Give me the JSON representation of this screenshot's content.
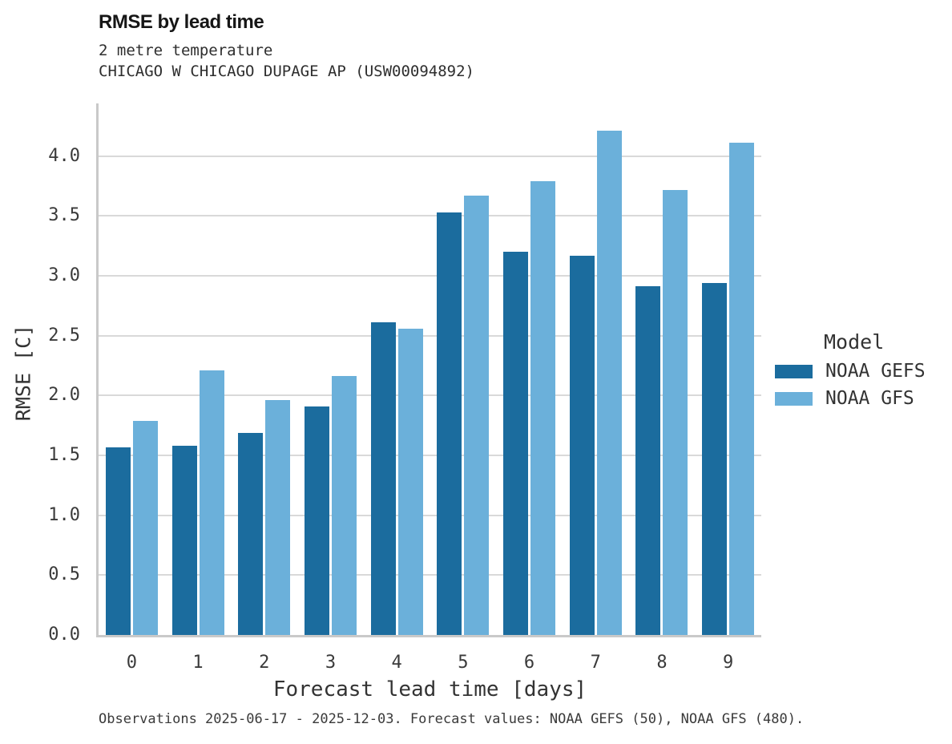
{
  "header": {
    "title": "RMSE by lead time",
    "subtitle_line1": "2 metre temperature",
    "subtitle_line2": "CHICAGO W CHICAGO DUPAGE AP (USW00094892)"
  },
  "legend": {
    "title": "Model"
  },
  "footer": {
    "text": "Observations 2025-06-17 - 2025-12-03. Forecast values: NOAA GEFS (50), NOAA GFS (480)."
  },
  "chart_data": {
    "type": "bar",
    "title": "RMSE by lead time",
    "subtitle": [
      "2 metre temperature",
      "CHICAGO W CHICAGO DUPAGE AP (USW00094892)"
    ],
    "xlabel": "Forecast lead time [days]",
    "ylabel": "RMSE [C]",
    "categories": [
      "0",
      "1",
      "2",
      "3",
      "4",
      "5",
      "6",
      "7",
      "8",
      "9"
    ],
    "series": [
      {
        "name": "NOAA GEFS",
        "color": "#1b6c9e",
        "values": [
          1.57,
          1.58,
          1.69,
          1.91,
          2.61,
          3.53,
          3.2,
          3.17,
          2.91,
          2.94
        ]
      },
      {
        "name": "NOAA GFS",
        "color": "#6bb0da",
        "values": [
          1.79,
          2.21,
          1.96,
          2.16,
          2.56,
          3.67,
          3.79,
          4.21,
          3.72,
          4.11
        ]
      }
    ],
    "ylim": [
      0,
      4.44
    ],
    "yticks": [
      0.0,
      0.5,
      1.0,
      1.5,
      2.0,
      2.5,
      3.0,
      3.5,
      4.0
    ],
    "grid": true,
    "legend_position": "right",
    "legend_title": "Model",
    "gridline_color": "#d9d9d9",
    "spine_color": "#c9c9c9",
    "background_color": "#ffffff"
  }
}
